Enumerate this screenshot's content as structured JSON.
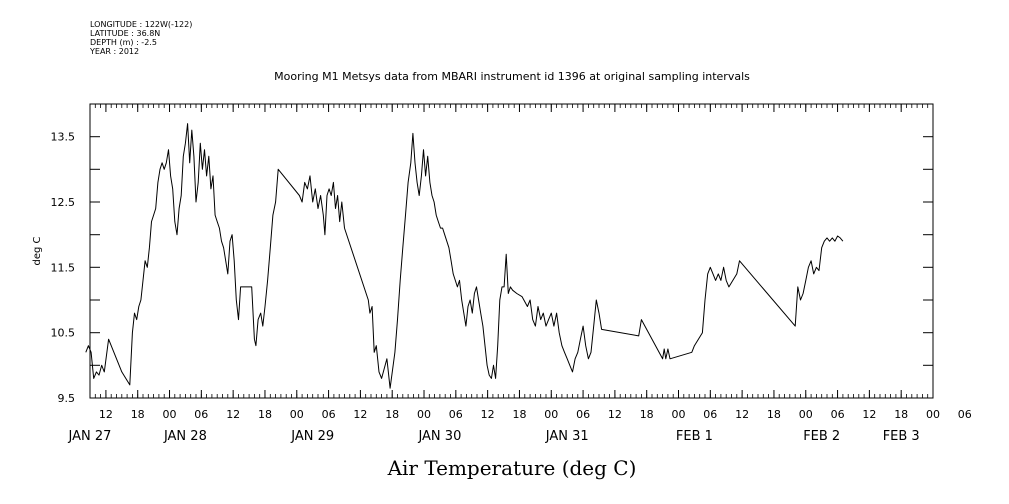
{
  "meta": {
    "longitude": "LONGITUDE : 122W(-122)",
    "latitude": "LATITUDE : 36.8N",
    "depth": "DEPTH (m) : -2.5",
    "year": "YEAR : 2012"
  },
  "chart_data": {
    "type": "line",
    "title": "Mooring M1 Metsys data from MBARI instrument id 1396 at original sampling intervals",
    "xlabel": "Air Temperature (deg C)",
    "ylabel": "deg C",
    "ylim": [
      9.5,
      14.0
    ],
    "y_ticks": [
      "9.5",
      "10.5",
      "11.5",
      "12.5",
      "13.5"
    ],
    "xlim_hours": [
      -15,
      144
    ],
    "hour_ticks": [
      {
        "h": -12,
        "label": "12"
      },
      {
        "h": -6,
        "label": "18"
      },
      {
        "h": 0,
        "label": "00"
      },
      {
        "h": 6,
        "label": "06"
      },
      {
        "h": 12,
        "label": "12"
      },
      {
        "h": 18,
        "label": "18"
      },
      {
        "h": 24,
        "label": "00"
      },
      {
        "h": 30,
        "label": "06"
      },
      {
        "h": 36,
        "label": "12"
      },
      {
        "h": 42,
        "label": "18"
      },
      {
        "h": 48,
        "label": "00"
      },
      {
        "h": 54,
        "label": "06"
      },
      {
        "h": 60,
        "label": "12"
      },
      {
        "h": 66,
        "label": "18"
      },
      {
        "h": 72,
        "label": "00"
      },
      {
        "h": 78,
        "label": "06"
      },
      {
        "h": 84,
        "label": "12"
      },
      {
        "h": 90,
        "label": "18"
      },
      {
        "h": 96,
        "label": "00"
      },
      {
        "h": 102,
        "label": "06"
      },
      {
        "h": 108,
        "label": "12"
      },
      {
        "h": 114,
        "label": "18"
      },
      {
        "h": 120,
        "label": "00"
      },
      {
        "h": 126,
        "label": "06"
      },
      {
        "h": 132,
        "label": "12"
      },
      {
        "h": 138,
        "label": "18"
      },
      {
        "h": 144,
        "label": "00"
      },
      {
        "h": 150,
        "label": "06"
      }
    ],
    "date_labels": [
      {
        "h": -15,
        "label": "JAN 27"
      },
      {
        "h": 3,
        "label": "JAN 28"
      },
      {
        "h": 27,
        "label": "JAN 29"
      },
      {
        "h": 51,
        "label": "JAN 30"
      },
      {
        "h": 75,
        "label": "JAN 31"
      },
      {
        "h": 99,
        "label": "FEB  1"
      },
      {
        "h": 123,
        "label": "FEB  2"
      },
      {
        "h": 138,
        "label": "FEB  3"
      }
    ],
    "series": [
      {
        "color": "#000000",
        "points": [
          [
            -15.8,
            10.2
          ],
          [
            -15.3,
            10.3
          ],
          [
            -14.8,
            10.2
          ],
          [
            -14.3,
            9.8
          ],
          [
            -13.8,
            9.9
          ],
          [
            -13.3,
            9.85
          ],
          [
            -12.8,
            10.0
          ],
          [
            -12.3,
            9.9
          ],
          [
            -11.5,
            10.4
          ],
          [
            -9.0,
            9.9
          ],
          [
            -7.5,
            9.7
          ],
          [
            -7.0,
            10.5
          ],
          [
            -6.6,
            10.8
          ],
          [
            -6.2,
            10.7
          ],
          [
            -5.8,
            10.9
          ],
          [
            -5.4,
            11.0
          ],
          [
            -5.0,
            11.3
          ],
          [
            -4.6,
            11.6
          ],
          [
            -4.2,
            11.5
          ],
          [
            -3.8,
            11.8
          ],
          [
            -3.4,
            12.2
          ],
          [
            -3.0,
            12.3
          ],
          [
            -2.6,
            12.4
          ],
          [
            -2.2,
            12.8
          ],
          [
            -1.8,
            13.0
          ],
          [
            -1.4,
            13.1
          ],
          [
            -1.0,
            13.0
          ],
          [
            -0.6,
            13.1
          ],
          [
            -0.2,
            13.3
          ],
          [
            0.2,
            12.9
          ],
          [
            0.6,
            12.7
          ],
          [
            1.0,
            12.2
          ],
          [
            1.4,
            12.0
          ],
          [
            1.8,
            12.4
          ],
          [
            2.2,
            12.6
          ],
          [
            2.6,
            13.2
          ],
          [
            3.0,
            13.4
          ],
          [
            3.4,
            13.7
          ],
          [
            3.8,
            13.1
          ],
          [
            4.2,
            13.6
          ],
          [
            4.6,
            13.2
          ],
          [
            5.0,
            12.5
          ],
          [
            5.4,
            12.8
          ],
          [
            5.8,
            13.4
          ],
          [
            6.2,
            13.0
          ],
          [
            6.6,
            13.3
          ],
          [
            7.0,
            12.9
          ],
          [
            7.4,
            13.2
          ],
          [
            7.8,
            12.7
          ],
          [
            8.2,
            12.9
          ],
          [
            8.6,
            12.3
          ],
          [
            9.0,
            12.2
          ],
          [
            9.4,
            12.1
          ],
          [
            9.8,
            11.9
          ],
          [
            10.2,
            11.8
          ],
          [
            10.6,
            11.6
          ],
          [
            11.0,
            11.4
          ],
          [
            11.4,
            11.9
          ],
          [
            11.8,
            12.0
          ],
          [
            12.2,
            11.6
          ],
          [
            12.6,
            11.0
          ],
          [
            13.0,
            10.7
          ],
          [
            13.4,
            11.2
          ],
          [
            15.5,
            11.2
          ],
          [
            16.0,
            10.4
          ],
          [
            16.3,
            10.3
          ],
          [
            16.7,
            10.7
          ],
          [
            17.2,
            10.8
          ],
          [
            17.6,
            10.6
          ],
          [
            18.0,
            10.9
          ],
          [
            18.5,
            11.3
          ],
          [
            19.0,
            11.8
          ],
          [
            19.5,
            12.3
          ],
          [
            20.0,
            12.5
          ],
          [
            20.5,
            13.0
          ],
          [
            24.5,
            12.6
          ],
          [
            25.0,
            12.5
          ],
          [
            25.5,
            12.8
          ],
          [
            26.0,
            12.7
          ],
          [
            26.5,
            12.9
          ],
          [
            27.0,
            12.5
          ],
          [
            27.5,
            12.7
          ],
          [
            28.0,
            12.4
          ],
          [
            28.5,
            12.6
          ],
          [
            29.0,
            12.3
          ],
          [
            29.3,
            12.0
          ],
          [
            29.7,
            12.6
          ],
          [
            30.1,
            12.7
          ],
          [
            30.5,
            12.6
          ],
          [
            30.9,
            12.8
          ],
          [
            31.3,
            12.4
          ],
          [
            31.7,
            12.6
          ],
          [
            32.1,
            12.2
          ],
          [
            32.5,
            12.5
          ],
          [
            33.0,
            12.1
          ],
          [
            37.5,
            11.0
          ],
          [
            37.8,
            10.8
          ],
          [
            38.2,
            10.9
          ],
          [
            38.6,
            10.2
          ],
          [
            39.0,
            10.3
          ],
          [
            39.5,
            9.9
          ],
          [
            40.0,
            9.8
          ],
          [
            41.0,
            10.1
          ],
          [
            41.6,
            9.65
          ],
          [
            42.5,
            10.2
          ],
          [
            43.0,
            10.7
          ],
          [
            43.5,
            11.3
          ],
          [
            44.0,
            11.8
          ],
          [
            44.5,
            12.3
          ],
          [
            45.0,
            12.8
          ],
          [
            45.5,
            13.1
          ],
          [
            45.9,
            13.55
          ],
          [
            46.3,
            13.1
          ],
          [
            46.7,
            12.8
          ],
          [
            47.1,
            12.6
          ],
          [
            47.5,
            12.9
          ],
          [
            47.9,
            13.3
          ],
          [
            48.3,
            12.9
          ],
          [
            48.7,
            13.2
          ],
          [
            49.1,
            12.8
          ],
          [
            49.5,
            12.6
          ],
          [
            49.9,
            12.5
          ],
          [
            50.3,
            12.3
          ],
          [
            50.7,
            12.2
          ],
          [
            51.1,
            12.1
          ],
          [
            51.5,
            12.1
          ],
          [
            51.9,
            12.0
          ],
          [
            52.3,
            11.9
          ],
          [
            52.7,
            11.8
          ],
          [
            53.1,
            11.6
          ],
          [
            53.5,
            11.4
          ],
          [
            53.9,
            11.3
          ],
          [
            54.3,
            11.2
          ],
          [
            54.7,
            11.3
          ],
          [
            55.1,
            11.0
          ],
          [
            55.5,
            10.8
          ],
          [
            55.9,
            10.6
          ],
          [
            56.3,
            10.9
          ],
          [
            56.7,
            11.0
          ],
          [
            57.1,
            10.8
          ],
          [
            57.5,
            11.1
          ],
          [
            57.9,
            11.2
          ],
          [
            58.3,
            11.0
          ],
          [
            58.7,
            10.8
          ],
          [
            59.1,
            10.6
          ],
          [
            59.5,
            10.3
          ],
          [
            59.9,
            10.0
          ],
          [
            60.3,
            9.85
          ],
          [
            60.7,
            9.8
          ],
          [
            61.1,
            10.0
          ],
          [
            61.5,
            9.8
          ],
          [
            61.9,
            10.3
          ],
          [
            62.3,
            11.0
          ],
          [
            62.7,
            11.2
          ],
          [
            63.1,
            11.2
          ],
          [
            63.5,
            11.7
          ],
          [
            63.9,
            11.1
          ],
          [
            64.3,
            11.2
          ],
          [
            64.7,
            11.15
          ],
          [
            65.5,
            11.1
          ],
          [
            66.5,
            11.05
          ],
          [
            67.5,
            10.9
          ],
          [
            68.0,
            11.0
          ],
          [
            68.5,
            10.7
          ],
          [
            69.0,
            10.6
          ],
          [
            69.5,
            10.9
          ],
          [
            70.0,
            10.7
          ],
          [
            70.5,
            10.8
          ],
          [
            71.0,
            10.6
          ],
          [
            71.5,
            10.7
          ],
          [
            72.0,
            10.8
          ],
          [
            72.5,
            10.6
          ],
          [
            73.0,
            10.8
          ],
          [
            73.5,
            10.5
          ],
          [
            74.0,
            10.3
          ],
          [
            74.5,
            10.2
          ],
          [
            75.0,
            10.1
          ],
          [
            75.5,
            10.0
          ],
          [
            76.0,
            9.9
          ],
          [
            76.5,
            10.1
          ],
          [
            77.0,
            10.2
          ],
          [
            77.5,
            10.4
          ],
          [
            78.0,
            10.6
          ],
          [
            78.5,
            10.3
          ],
          [
            79.0,
            10.1
          ],
          [
            79.5,
            10.2
          ],
          [
            80.0,
            10.6
          ],
          [
            80.5,
            11.0
          ],
          [
            81.0,
            10.8
          ],
          [
            81.5,
            10.55
          ],
          [
            88.5,
            10.45
          ],
          [
            89.0,
            10.7
          ],
          [
            93.0,
            10.1
          ],
          [
            93.3,
            10.25
          ],
          [
            93.6,
            10.1
          ],
          [
            94.0,
            10.25
          ],
          [
            94.4,
            10.1
          ],
          [
            98.5,
            10.2
          ],
          [
            99.0,
            10.3
          ],
          [
            100.5,
            10.5
          ],
          [
            101.0,
            11.0
          ],
          [
            101.5,
            11.4
          ],
          [
            102.0,
            11.5
          ],
          [
            102.5,
            11.4
          ],
          [
            103.0,
            11.3
          ],
          [
            103.5,
            11.4
          ],
          [
            104.0,
            11.3
          ],
          [
            104.5,
            11.5
          ],
          [
            105.0,
            11.3
          ],
          [
            105.5,
            11.2
          ],
          [
            107.0,
            11.4
          ],
          [
            107.5,
            11.6
          ],
          [
            118.0,
            10.6
          ],
          [
            118.5,
            11.2
          ],
          [
            119.0,
            11.0
          ],
          [
            119.5,
            11.1
          ],
          [
            120.0,
            11.3
          ],
          [
            120.5,
            11.5
          ],
          [
            121.0,
            11.6
          ],
          [
            121.5,
            11.4
          ],
          [
            122.0,
            11.5
          ],
          [
            122.5,
            11.45
          ],
          [
            123.0,
            11.8
          ],
          [
            123.5,
            11.9
          ],
          [
            124.0,
            11.95
          ],
          [
            124.5,
            11.9
          ],
          [
            125.0,
            11.95
          ],
          [
            125.5,
            11.9
          ],
          [
            126.0,
            11.98
          ],
          [
            126.5,
            11.95
          ],
          [
            127.0,
            11.9
          ]
        ]
      }
    ]
  }
}
